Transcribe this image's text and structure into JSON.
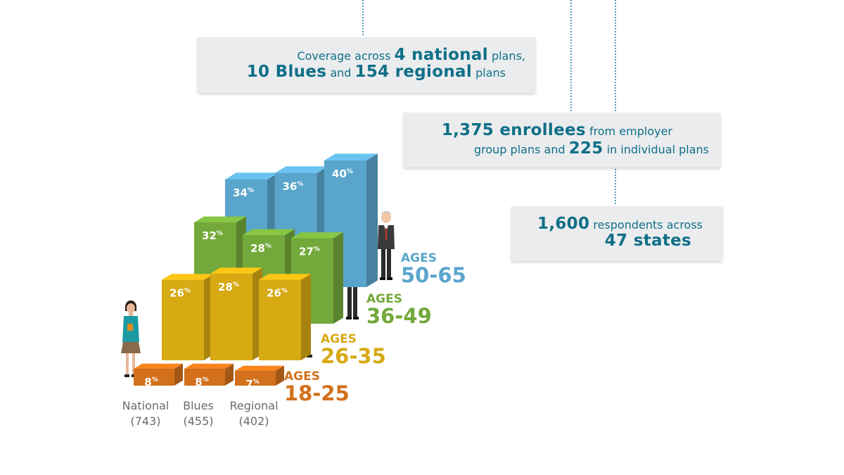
{
  "callouts": {
    "coverage": {
      "line1_pre": "Coverage across ",
      "line1_num": "4 national",
      "line1_post": " plans,",
      "line2_num1": "10 Blues",
      "line2_mid": " and ",
      "line2_num2": "154 regional",
      "line2_post": " plans"
    },
    "enrollees": {
      "line1_num": "1,375 enrollees",
      "line1_post": " from employer",
      "line2_pre": "group plans and ",
      "line2_num": "225",
      "line2_post": " in individual plans"
    },
    "respondents": {
      "line1_num": "1,600",
      "line1_post": " respondents across",
      "line2_num": "47 states"
    }
  },
  "chart_data": {
    "type": "bar",
    "categories": [
      "National",
      "Blues",
      "Regional"
    ],
    "category_counts": [
      "(743)",
      "(455)",
      "(402)"
    ],
    "series": [
      {
        "name": "AGES 18-25",
        "label_top": "AGES",
        "label_bottom": "18-25",
        "values": [
          8,
          8,
          7
        ],
        "color": "#d2701b"
      },
      {
        "name": "AGES 26-35",
        "label_top": "AGES",
        "label_bottom": "26-35",
        "values": [
          26,
          28,
          26
        ],
        "color": "#d7a913"
      },
      {
        "name": "AGES 36-49",
        "label_top": "AGES",
        "label_bottom": "36-49",
        "values": [
          32,
          28,
          27
        ],
        "color": "#72a93a"
      },
      {
        "name": "AGES 50-65",
        "label_top": "AGES",
        "label_bottom": "50-65",
        "values": [
          34,
          36,
          40
        ],
        "color": "#5aa5cc"
      }
    ],
    "value_suffix": "%"
  }
}
